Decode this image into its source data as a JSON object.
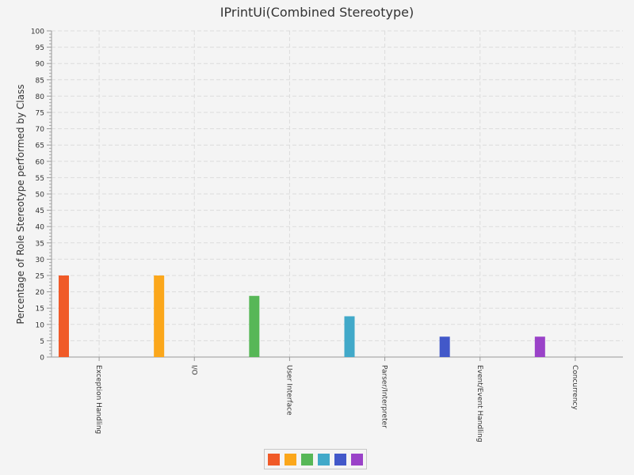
{
  "chart_data": {
    "type": "bar",
    "title": "IPrintUi(Combined Stereotype)",
    "xlabel": "",
    "ylabel": "Percentage of Role Stereotype performed by Class",
    "categories": [
      "Exception Handling",
      "I/O",
      "User Interface",
      "Parser/Interpreter",
      "Event/Event Handling",
      "Concurrency"
    ],
    "values": [
      25,
      25,
      18.75,
      12.5,
      6.25,
      6.25
    ],
    "colors": [
      "#f05a28",
      "#fba71b",
      "#57b757",
      "#41a9c9",
      "#4258c9",
      "#9a42c8"
    ],
    "ylim": [
      0,
      100
    ],
    "yticks": [
      0,
      5,
      10,
      15,
      20,
      25,
      30,
      35,
      40,
      45,
      50,
      55,
      60,
      65,
      70,
      75,
      80,
      85,
      90,
      95,
      100
    ],
    "grid": true,
    "legend": "bottom-center"
  }
}
